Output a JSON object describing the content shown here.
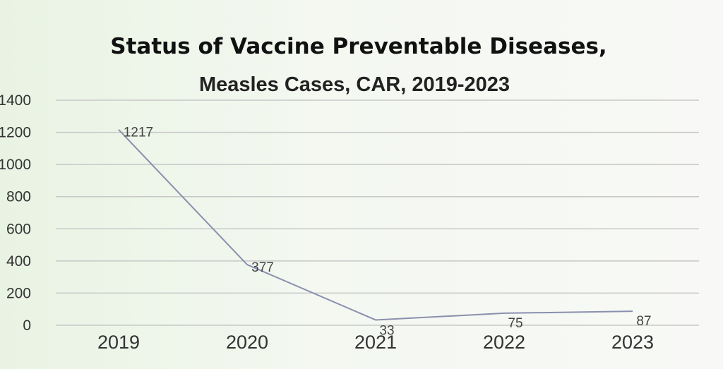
{
  "chart_data": {
    "type": "line",
    "title": "Status of Vaccine Preventable Diseases,",
    "subtitle": "Measles Cases, CAR, 2019-2023",
    "categories": [
      "2019",
      "2020",
      "2021",
      "2022",
      "2023"
    ],
    "series": [
      {
        "values": [
          1217,
          377,
          33,
          75,
          87
        ]
      }
    ],
    "yticks": [
      0,
      200,
      400,
      600,
      800,
      1000,
      1200,
      1400
    ],
    "ylim": [
      0,
      1400
    ],
    "grid": true,
    "legend": "none",
    "line_color": "#8a8fae"
  }
}
